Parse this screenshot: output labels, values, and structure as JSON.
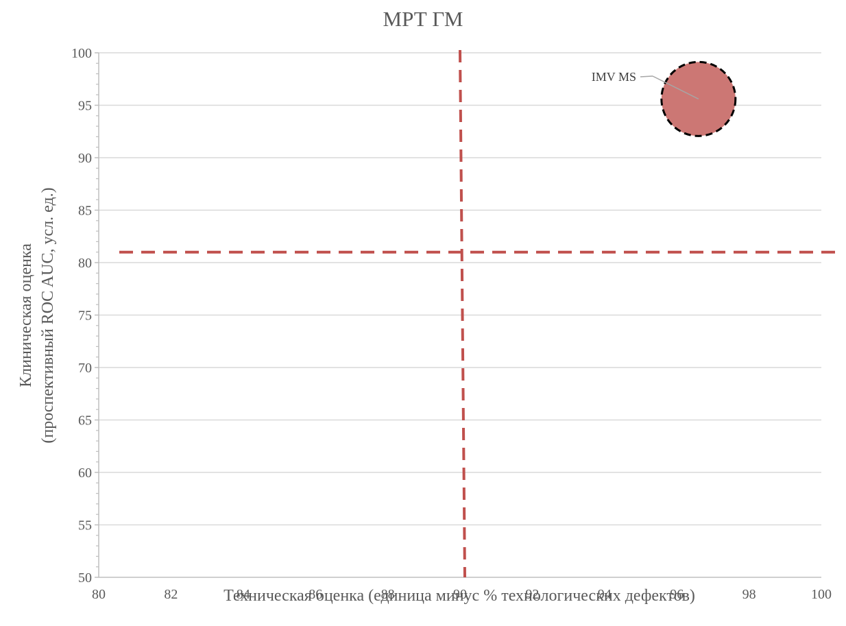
{
  "chart_data": {
    "type": "bubble",
    "title": "МРТ ГМ",
    "xlabel": "Техническая оценка (единица минус % технологических дефектов)",
    "ylabel_line1": "Клиническая оценка",
    "ylabel_line2": "(проспективный ROC AUC, усл. ед.)",
    "xlim": [
      80,
      100
    ],
    "ylim": [
      50,
      100
    ],
    "x_ticks": [
      80,
      82,
      84,
      86,
      88,
      90,
      92,
      94,
      96,
      98,
      100
    ],
    "y_ticks": [
      50,
      55,
      60,
      65,
      70,
      75,
      80,
      85,
      90,
      95,
      100
    ],
    "grid": true,
    "reference_lines": {
      "x": 90,
      "y": 81
    },
    "points": [
      {
        "label": "IMV MS",
        "x": 96.6,
        "y": 95.6
      }
    ],
    "colors": {
      "bubble_fill": "#cc7774",
      "bubble_stroke": "#000000",
      "reference_line": "#c0504d",
      "grid": "#d9d9d9",
      "axis": "#bfbfbf",
      "text": "#595959"
    }
  }
}
